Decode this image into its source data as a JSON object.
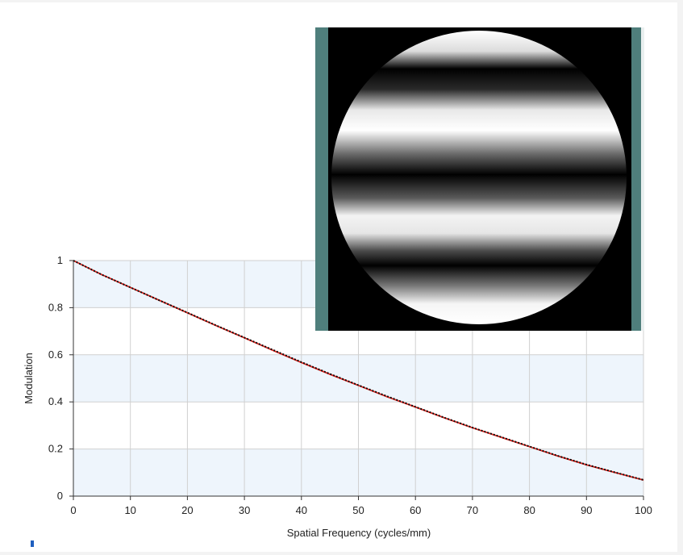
{
  "chart_data": {
    "type": "line",
    "xlabel": "Spatial Frequency (cycles/mm)",
    "ylabel": "Modulation",
    "xlim": [
      0,
      100
    ],
    "ylim": [
      0,
      1
    ],
    "xticks": [
      "0",
      "10",
      "20",
      "30",
      "40",
      "50",
      "60",
      "70",
      "80",
      "90",
      "100"
    ],
    "yticks": [
      "0",
      "0.2",
      "0.4",
      "0.6",
      "0.8",
      "1"
    ],
    "grid": true,
    "alternating_band_color": "#eef5fc",
    "series": [
      {
        "style": "solid",
        "color": "#e8231c",
        "x": [
          0,
          5,
          10,
          15,
          20,
          25,
          30,
          35,
          40,
          45,
          50,
          55,
          60,
          65,
          70,
          75,
          80,
          85,
          90,
          95,
          100
        ],
        "y": [
          1.0,
          0.94,
          0.886,
          0.832,
          0.778,
          0.724,
          0.672,
          0.619,
          0.567,
          0.517,
          0.47,
          0.422,
          0.378,
          0.333,
          0.29,
          0.25,
          0.21,
          0.17,
          0.133,
          0.1,
          0.068
        ]
      },
      {
        "style": "dotted",
        "color": "#111111",
        "x": [
          0,
          5,
          10,
          15,
          20,
          25,
          30,
          35,
          40,
          45,
          50,
          55,
          60,
          65,
          70,
          75,
          80,
          85,
          90,
          95,
          100
        ],
        "y": [
          1.0,
          0.94,
          0.886,
          0.832,
          0.779,
          0.725,
          0.673,
          0.621,
          0.569,
          0.519,
          0.471,
          0.424,
          0.379,
          0.334,
          0.291,
          0.251,
          0.211,
          0.171,
          0.134,
          0.101,
          0.069
        ]
      }
    ]
  },
  "inset": {
    "name": "interferogram",
    "frame_color": "#4f7f7c",
    "background_color": "#000000"
  }
}
